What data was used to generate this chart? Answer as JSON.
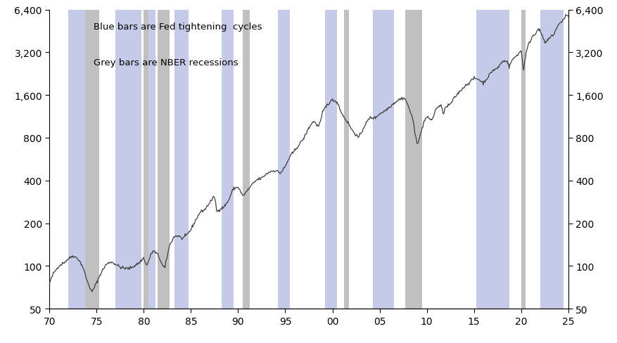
{
  "annotation_line1": "Blue bars are Fed tightening  cycles",
  "annotation_line2": "Grey bars are NBER recessions",
  "xmin": 1970,
  "xmax": 2025,
  "ymin": 50,
  "ymax": 6400,
  "xticks": [
    1970,
    1975,
    1980,
    1985,
    1990,
    1995,
    2000,
    2005,
    2010,
    2015,
    2020,
    2025
  ],
  "xlabels": [
    "70",
    "75",
    "80",
    "85",
    "90",
    "95",
    "00",
    "05",
    "10",
    "15",
    "20",
    "25"
  ],
  "yticks": [
    50,
    100,
    200,
    400,
    800,
    1600,
    3200,
    6400
  ],
  "blue_bars": [
    [
      1972.0,
      1974.25
    ],
    [
      1977.0,
      1979.75
    ],
    [
      1980.5,
      1981.25
    ],
    [
      1983.25,
      1984.75
    ],
    [
      1988.25,
      1989.5
    ],
    [
      1994.25,
      1995.5
    ],
    [
      1999.25,
      2000.5
    ],
    [
      2004.25,
      2006.5
    ],
    [
      2015.25,
      2018.75
    ],
    [
      2022.0,
      2024.5
    ]
  ],
  "grey_bars": [
    [
      1973.75,
      1975.25
    ],
    [
      1980.0,
      1980.5
    ],
    [
      1981.5,
      1982.75
    ],
    [
      1990.5,
      1991.25
    ],
    [
      2001.25,
      2001.75
    ],
    [
      2007.75,
      2009.5
    ],
    [
      2020.0,
      2020.5
    ]
  ],
  "blue_color": "#c5cae9",
  "grey_color": "#c0c0c0",
  "line_color": "#404040",
  "background_color": "#ffffff",
  "keypoints": [
    [
      1970.0,
      75
    ],
    [
      1970.4,
      88
    ],
    [
      1971.0,
      100
    ],
    [
      1971.5,
      105
    ],
    [
      1972.0,
      112
    ],
    [
      1972.5,
      118
    ],
    [
      1973.0,
      113
    ],
    [
      1973.5,
      100
    ],
    [
      1974.0,
      78
    ],
    [
      1974.5,
      65
    ],
    [
      1975.0,
      76
    ],
    [
      1975.5,
      90
    ],
    [
      1976.0,
      102
    ],
    [
      1976.5,
      107
    ],
    [
      1977.0,
      103
    ],
    [
      1977.5,
      98
    ],
    [
      1978.0,
      96
    ],
    [
      1978.5,
      96
    ],
    [
      1979.0,
      100
    ],
    [
      1979.5,
      105
    ],
    [
      1980.0,
      114
    ],
    [
      1980.3,
      100
    ],
    [
      1980.5,
      107
    ],
    [
      1980.75,
      120
    ],
    [
      1981.0,
      128
    ],
    [
      1981.5,
      120
    ],
    [
      1982.0,
      100
    ],
    [
      1982.25,
      97
    ],
    [
      1982.75,
      140
    ],
    [
      1983.25,
      162
    ],
    [
      1983.75,
      163
    ],
    [
      1984.0,
      155
    ],
    [
      1984.5,
      163
    ],
    [
      1985.0,
      180
    ],
    [
      1985.5,
      210
    ],
    [
      1986.0,
      240
    ],
    [
      1986.5,
      250
    ],
    [
      1987.0,
      280
    ],
    [
      1987.5,
      310
    ],
    [
      1987.75,
      240
    ],
    [
      1988.0,
      250
    ],
    [
      1988.5,
      260
    ],
    [
      1989.0,
      290
    ],
    [
      1989.5,
      350
    ],
    [
      1990.0,
      360
    ],
    [
      1990.5,
      310
    ],
    [
      1991.0,
      340
    ],
    [
      1991.5,
      375
    ],
    [
      1992.0,
      405
    ],
    [
      1992.5,
      415
    ],
    [
      1993.0,
      445
    ],
    [
      1993.5,
      465
    ],
    [
      1994.0,
      470
    ],
    [
      1994.5,
      450
    ],
    [
      1995.0,
      500
    ],
    [
      1995.5,
      590
    ],
    [
      1996.0,
      650
    ],
    [
      1996.5,
      720
    ],
    [
      1997.0,
      800
    ],
    [
      1997.5,
      940
    ],
    [
      1998.0,
      1050
    ],
    [
      1998.5,
      960
    ],
    [
      1998.75,
      1050
    ],
    [
      1999.0,
      1230
    ],
    [
      1999.5,
      1380
    ],
    [
      2000.0,
      1480
    ],
    [
      2000.5,
      1430
    ],
    [
      2001.0,
      1180
    ],
    [
      2001.5,
      1050
    ],
    [
      2001.75,
      1000
    ],
    [
      2002.0,
      920
    ],
    [
      2002.5,
      840
    ],
    [
      2002.75,
      800
    ],
    [
      2003.0,
      850
    ],
    [
      2003.5,
      1000
    ],
    [
      2004.0,
      1110
    ],
    [
      2004.5,
      1100
    ],
    [
      2005.0,
      1180
    ],
    [
      2005.5,
      1230
    ],
    [
      2006.0,
      1310
    ],
    [
      2006.5,
      1400
    ],
    [
      2007.0,
      1480
    ],
    [
      2007.5,
      1530
    ],
    [
      2007.75,
      1490
    ],
    [
      2008.0,
      1350
    ],
    [
      2008.5,
      1100
    ],
    [
      2008.75,
      850
    ],
    [
      2009.0,
      730
    ],
    [
      2009.25,
      800
    ],
    [
      2009.75,
      1060
    ],
    [
      2010.0,
      1115
    ],
    [
      2010.5,
      1070
    ],
    [
      2010.75,
      1140
    ],
    [
      2011.0,
      1300
    ],
    [
      2011.5,
      1350
    ],
    [
      2011.75,
      1180
    ],
    [
      2012.0,
      1310
    ],
    [
      2012.5,
      1380
    ],
    [
      2013.0,
      1550
    ],
    [
      2013.5,
      1700
    ],
    [
      2014.0,
      1840
    ],
    [
      2014.5,
      1960
    ],
    [
      2015.0,
      2100
    ],
    [
      2015.5,
      2070
    ],
    [
      2016.0,
      1940
    ],
    [
      2016.5,
      2150
    ],
    [
      2017.0,
      2390
    ],
    [
      2017.5,
      2470
    ],
    [
      2018.0,
      2750
    ],
    [
      2018.5,
      2800
    ],
    [
      2018.75,
      2510
    ],
    [
      2019.0,
      2800
    ],
    [
      2019.5,
      3020
    ],
    [
      2020.0,
      3300
    ],
    [
      2020.25,
      2390
    ],
    [
      2020.5,
      3100
    ],
    [
      2020.75,
      3580
    ],
    [
      2021.0,
      3900
    ],
    [
      2021.25,
      4200
    ],
    [
      2021.5,
      4300
    ],
    [
      2021.75,
      4700
    ],
    [
      2022.0,
      4510
    ],
    [
      2022.25,
      4200
    ],
    [
      2022.5,
      3700
    ],
    [
      2022.75,
      3850
    ],
    [
      2023.0,
      4000
    ],
    [
      2023.25,
      4200
    ],
    [
      2023.5,
      4300
    ],
    [
      2023.75,
      4750
    ],
    [
      2024.0,
      5000
    ],
    [
      2024.25,
      5250
    ],
    [
      2024.5,
      5460
    ],
    [
      2024.75,
      5870
    ],
    [
      2024.85,
      5760
    ],
    [
      2024.9,
      5850
    ],
    [
      2025.0,
      5750
    ]
  ]
}
